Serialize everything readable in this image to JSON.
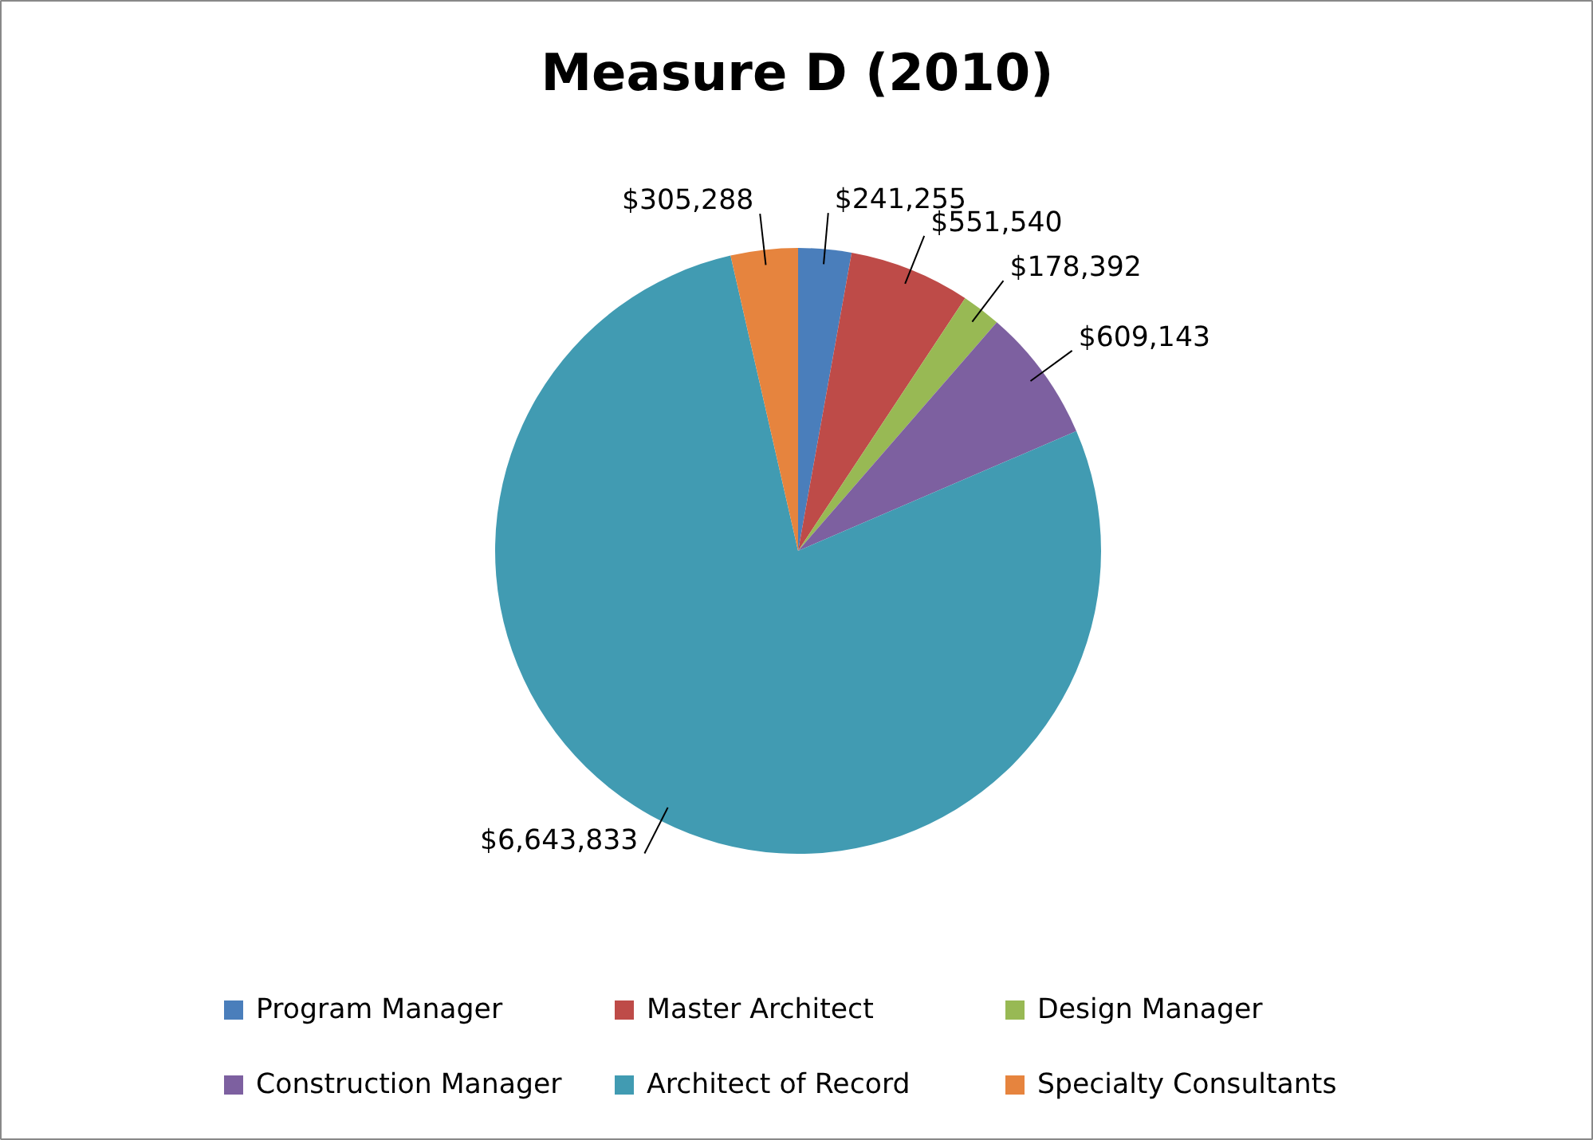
{
  "chart_data": {
    "type": "pie",
    "title": "Measure D (2010)",
    "categories": [
      "Program Manager",
      "Master Architect",
      "Design Manager",
      "Construction Manager",
      "Architect of Record",
      "Specialty Consultants"
    ],
    "values": [
      241255,
      551540,
      178392,
      609143,
      6643833,
      305288
    ],
    "value_labels": [
      "$241,255",
      "$551,540",
      "$178,392",
      "$609,143",
      "$6,643,833",
      "$305,288"
    ],
    "colors": [
      "#4a7ebb",
      "#be4b48",
      "#98b954",
      "#7d60a0",
      "#419bb2",
      "#e6843e"
    ],
    "legend": "bottom"
  }
}
